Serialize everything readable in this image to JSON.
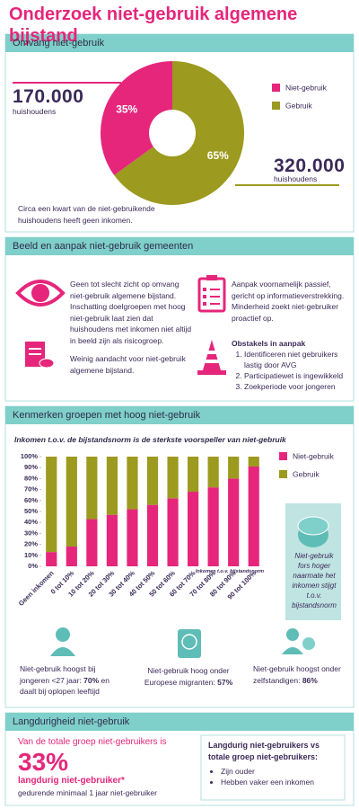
{
  "title": "Onderzoek niet-gebruik algemene bijstand",
  "section1": {
    "header": "Omvang niet-gebruik",
    "figure_left": {
      "number": "170.000",
      "unit": "huishoudens"
    },
    "figure_right": {
      "number": "320.000",
      "unit": "huishoudens"
    },
    "note": "Circa een kwart van de niet-gebruikende huishoudens heeft geen inkomen."
  },
  "section2": {
    "header": "Beeld en aanpak niet-gebruik gemeenten",
    "items": [
      "Geen tot slecht zicht op omvang niet-gebruik algemene bijstand. Inschatting doelgroepen met hoog niet-gebruik laat zien dat huishoudens met inkomen niet altijd in beeld zijn als risicogroep.",
      "Weinig aandacht voor niet-gebruik algemene bijstand.",
      "Aanpak voornamelijk passief, gericht op informatieverstrekking. Minderheid zoekt niet-gebruiker proactief op."
    ],
    "obstacles": {
      "title": "Obstakels in aanpak",
      "list": [
        "Identificeren niet gebruikers lastig door AVG",
        "Participatiewet is ingewikkeld",
        "Zoekperiode voor jongeren"
      ]
    }
  },
  "section3": {
    "header": "Kenmerken groepen met hoog niet-gebruik",
    "callout": "Niet-gebruik fors hoger naarmate het inkomen stijgt t.o.v. bijstandsnorm",
    "facts": [
      {
        "before": "Niet-gebruik hoogst bij jongeren <27 jaar: ",
        "highlight": "70%",
        "after": " en daalt bij oplopen leeftijd"
      },
      {
        "before": "Niet-gebruik hoog onder Europese migranten: ",
        "highlight": "57%",
        "after": null
      },
      {
        "before": "Niet-gebruik hoogst onder zelfstandigen: ",
        "highlight": "86%",
        "after": null
      }
    ]
  },
  "section4": {
    "header": "Langdurigheid niet-gebruik",
    "intro": "Van de totale groep niet-gebruikers is",
    "percentage": "33%",
    "label": "langdurig niet-gebruiker*",
    "sublabel": "gedurende minimaal 1 jaar niet-gebruiker",
    "box": {
      "title": "Langdurig niet-gebruikers vs totale groep niet-gebruikers:",
      "bullets": [
        "Zijn ouder",
        "Hebben vaker een inkomen"
      ]
    }
  },
  "chart_data": [
    {
      "type": "pie",
      "categories": [
        "Niet-gebruik",
        "Gebruik"
      ],
      "values": [
        35,
        65
      ],
      "value_labels": [
        "35%",
        "65%"
      ],
      "colors": [
        "#e5267b",
        "#9c9a1f"
      ]
    },
    {
      "type": "bar",
      "stacked": true,
      "title": "Inkomen t.o.v. de bijstandsnorm is de sterkste voorspeller van niet-gebruik",
      "x_label": "Inkomen t.o.v. bijstandsnorm",
      "categories": [
        "Geen inkomen",
        "0 tot 10%",
        "10 tot 20%",
        "20 tot 30%",
        "30 tot 40%",
        "40 tot 50%",
        "50 tot 60%",
        "60 tot 70%",
        "70 tot 80%",
        "80 tot 90%",
        "90 tot 100%"
      ],
      "series": [
        {
          "name": "Niet-gebruik",
          "color": "#e5267b",
          "values": [
            13,
            18,
            43,
            47,
            52,
            56,
            62,
            68,
            72,
            80,
            91
          ]
        },
        {
          "name": "Gebruik",
          "color": "#9c9a1f",
          "values": [
            87,
            82,
            57,
            53,
            48,
            44,
            38,
            32,
            28,
            20,
            9
          ]
        }
      ],
      "ylim": [
        0,
        100
      ],
      "yticks": [
        {
          "value": 0,
          "label": "0%"
        },
        {
          "value": 10,
          "label": "10%"
        },
        {
          "value": 20,
          "label": "20%"
        },
        {
          "value": 30,
          "label": "30%"
        },
        {
          "value": 40,
          "label": "40%"
        },
        {
          "value": 50,
          "label": "50%"
        },
        {
          "value": 60,
          "label": "60%"
        },
        {
          "value": 70,
          "label": "70%"
        },
        {
          "value": 80,
          "label": "80%"
        },
        {
          "value": 90,
          "label": "90%"
        },
        {
          "value": 100,
          "label": "100%"
        }
      ]
    }
  ]
}
